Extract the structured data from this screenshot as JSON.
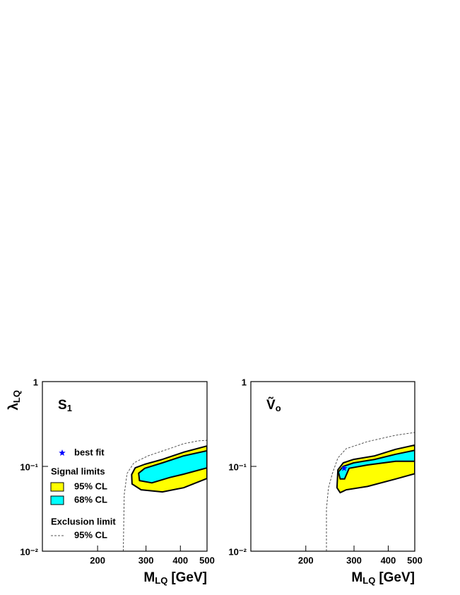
{
  "chart_data": [
    {
      "type": "contour",
      "panel_label": {
        "text": "S",
        "subscript": "1"
      },
      "y_label": {
        "symbol": "λ",
        "subscript": "LQ"
      },
      "x_label": {
        "symbol": "M",
        "subscript": "LQ",
        "unit": "[GeV]"
      },
      "xlim": [
        126,
        500
      ],
      "ylim": [
        0.01,
        1
      ],
      "log_x": true,
      "log_y": true,
      "xticks": [
        200,
        300,
        400,
        500
      ],
      "yticks": [
        1,
        {
          "value": 0.1,
          "label": "10⁻¹"
        },
        {
          "value": 0.01,
          "label": "10⁻²"
        }
      ],
      "marker": {
        "name": "best fit",
        "color": "#0000ff"
      },
      "groups": [
        {
          "title": "Signal limits",
          "series": [
            {
              "name": "95% CL",
              "style": "filled",
              "color": "#ffff00",
              "x": [
                500,
                411,
                344,
                297,
                274,
                266,
                267,
                288,
                344,
                411,
                500
              ],
              "y": [
                0.174,
                0.147,
                0.121,
                0.106,
                0.096,
                0.08,
                0.062,
                0.053,
                0.05,
                0.056,
                0.072
              ]
            },
            {
              "name": "68% CL",
              "style": "filled",
              "color": "#00ffff",
              "x": [
                500,
                411,
                344,
                297,
                282,
                284,
                315,
                366,
                411,
                500
              ],
              "y": [
                0.153,
                0.133,
                0.11,
                0.095,
                0.083,
                0.068,
                0.064,
                0.074,
                0.081,
                0.096
              ]
            }
          ]
        },
        {
          "title": "Exclusion limit",
          "series": [
            {
              "name": "95% CL",
              "style": "dashed",
              "color": "#555555",
              "x": [
                248,
                250,
                256,
                271,
                305,
                365,
                411,
                463,
                500
              ],
              "y": [
                0.01,
                0.0464,
                0.0825,
                0.11,
                0.133,
                0.162,
                0.185,
                0.2,
                0.203
              ]
            }
          ]
        }
      ]
    },
    {
      "type": "contour",
      "panel_label": {
        "text": "Ṽ",
        "subscript": "o"
      },
      "x_label": {
        "symbol": "M",
        "subscript": "LQ",
        "unit": "[GeV]"
      },
      "xlim": [
        126,
        500
      ],
      "ylim": [
        0.01,
        1
      ],
      "log_x": true,
      "log_y": true,
      "xticks": [
        200,
        300,
        400,
        500
      ],
      "yticks": [
        1,
        {
          "value": 0.1,
          "label": "10⁻¹"
        },
        {
          "value": 0.01,
          "label": "10⁻²"
        }
      ],
      "best_fit": {
        "x": 276,
        "y": 0.095,
        "color": "#0000ff"
      },
      "series": [
        {
          "style": "filled",
          "color": "#ffff00",
          "x": [
            500,
            426,
            357,
            299,
            274,
            262,
            260,
            267,
            281,
            336,
            426,
            500
          ],
          "y": [
            0.178,
            0.159,
            0.133,
            0.121,
            0.11,
            0.091,
            0.056,
            0.049,
            0.053,
            0.058,
            0.071,
            0.082
          ]
        },
        {
          "style": "filled",
          "color": "#00ffff",
          "x": [
            500,
            426,
            357,
            299,
            274,
            263,
            267,
            277,
            288,
            336,
            426,
            500
          ],
          "y": [
            0.155,
            0.139,
            0.121,
            0.11,
            0.1,
            0.086,
            0.071,
            0.071,
            0.095,
            0.104,
            0.115,
            0.115
          ]
        },
        {
          "style": "dashed",
          "color": "#555555",
          "x": [
            238,
            238,
            242,
            250,
            262,
            281,
            336,
            426,
            500
          ],
          "y": [
            0.01,
            0.0316,
            0.056,
            0.082,
            0.126,
            0.162,
            0.196,
            0.233,
            0.251
          ]
        }
      ]
    }
  ]
}
